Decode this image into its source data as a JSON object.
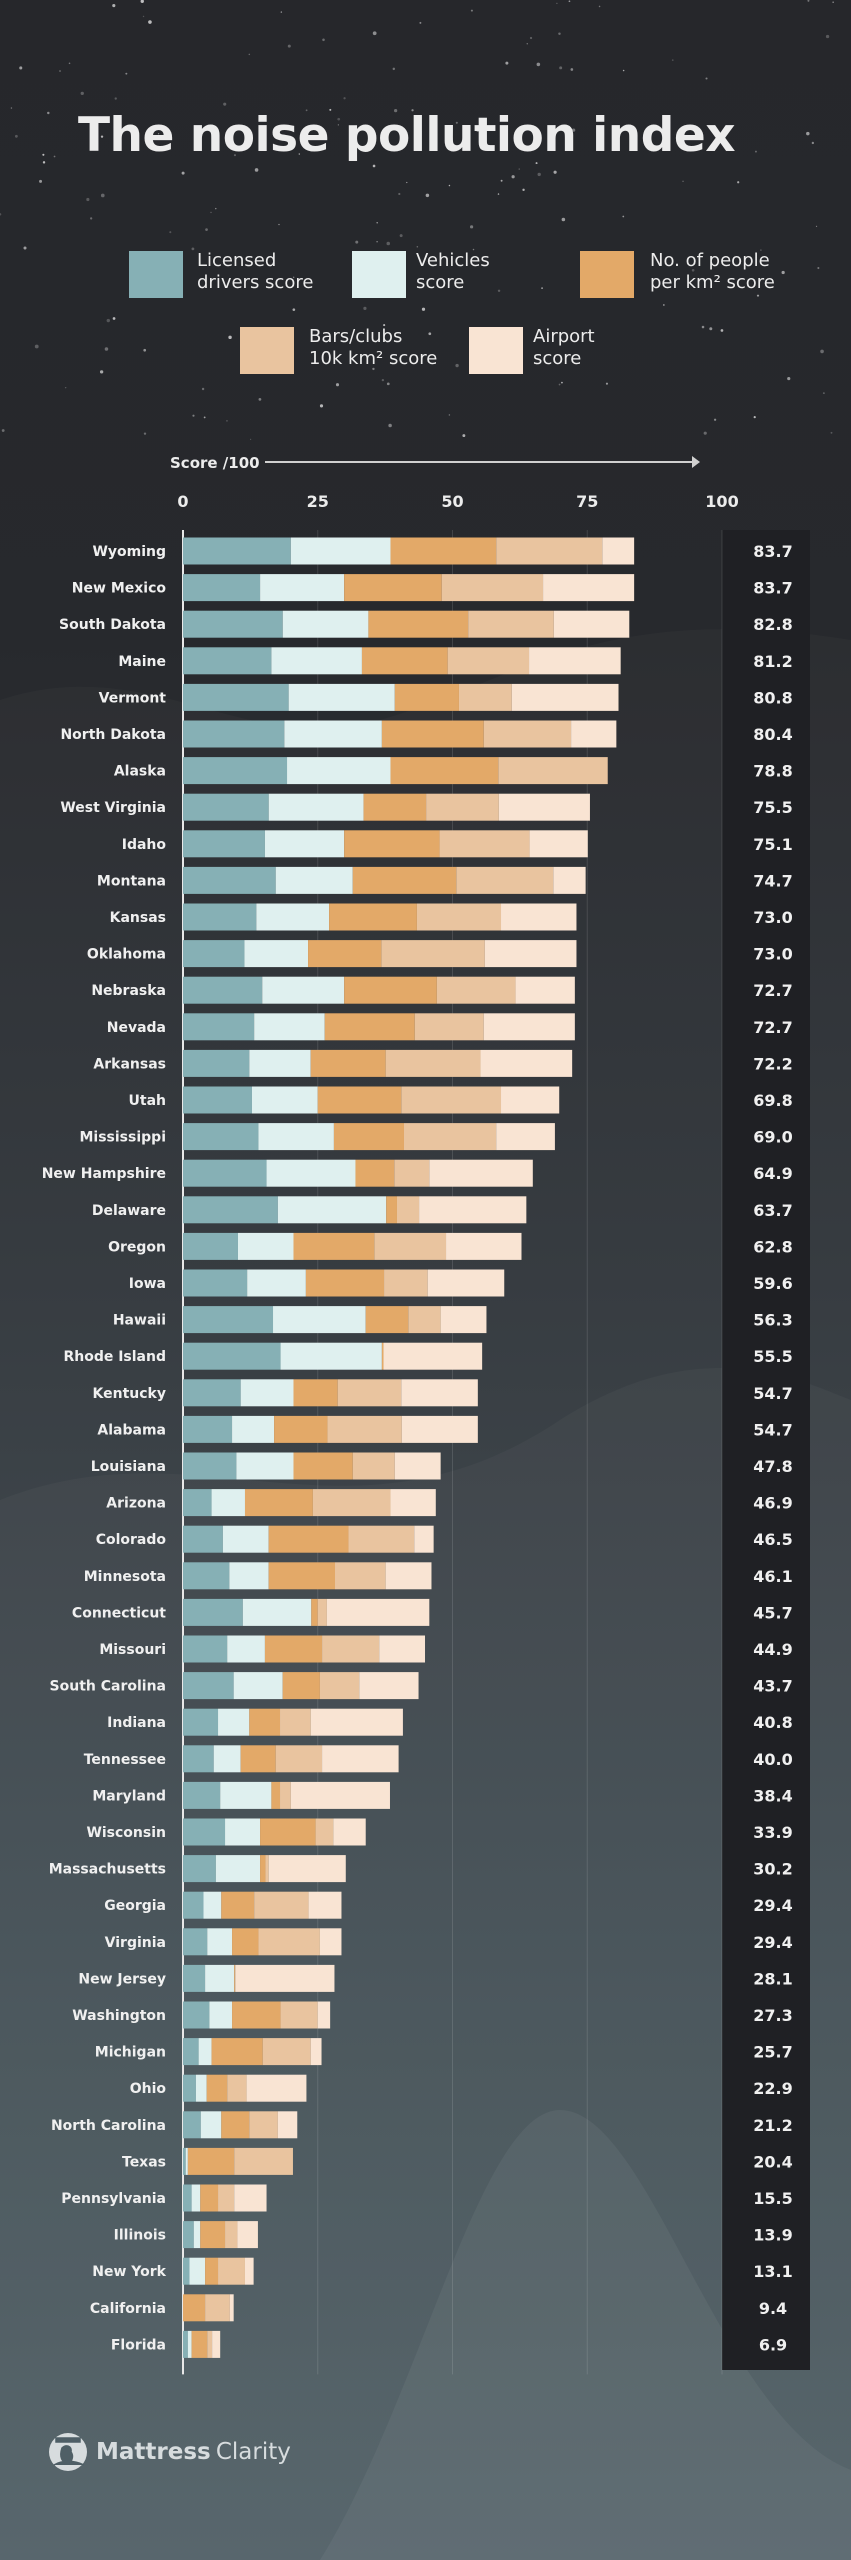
{
  "title": "The noise pollution index",
  "legend": [
    {
      "label": "Licensed\ndrivers score",
      "color": "#86b0b5"
    },
    {
      "label": "Vehicles\nscore",
      "color": "#dff0ef"
    },
    {
      "label": "No. of people\nper km² score",
      "color": "#e3a968"
    },
    {
      "label": "Bars/clubs\n10k km² score",
      "color": "#e9c49f"
    },
    {
      "label": "Airport\nscore",
      "color": "#f9e4d3"
    }
  ],
  "logo": {
    "brand_bold": "Mattress",
    "brand_light": "Clarity"
  },
  "chart_data": {
    "type": "bar",
    "orientation": "horizontal",
    "stacked": true,
    "title": "The noise pollution index",
    "xlabel": "Score /100",
    "xlim": [
      0,
      100
    ],
    "xticks": [
      "0",
      "25",
      "50",
      "75",
      "100"
    ],
    "grid": true,
    "legend_position": "top",
    "categories": [
      "Wyoming",
      "New Mexico",
      "South Dakota",
      "Maine",
      "Vermont",
      "North Dakota",
      "Alaska",
      "West Virginia",
      "Idaho",
      "Montana",
      "Kansas",
      "Oklahoma",
      "Nebraska",
      "Nevada",
      "Arkansas",
      "Utah",
      "Mississippi",
      "New Hampshire",
      "Delaware",
      "Oregon",
      "Iowa",
      "Hawaii",
      "Rhode Island",
      "Kentucky",
      "Alabama",
      "Louisiana",
      "Arizona",
      "Colorado",
      "Minnesota",
      "Connecticut",
      "Missouri",
      "South Carolina",
      "Indiana",
      "Tennessee",
      "Maryland",
      "Wisconsin",
      "Massachusetts",
      "Georgia",
      "Virginia",
      "New Jersey",
      "Washington",
      "Michigan",
      "Ohio",
      "North Carolina",
      "Texas",
      "Pennsylvania",
      "Illinois",
      "New York",
      "California",
      "Florida"
    ],
    "totals": [
      "83.7",
      "83.7",
      "82.8",
      "81.2",
      "80.8",
      "80.4",
      "78.8",
      "75.5",
      "75.1",
      "74.7",
      "73.0",
      "73.0",
      "72.7",
      "72.7",
      "72.2",
      "69.8",
      "69.0",
      "64.9",
      "63.7",
      "62.8",
      "59.6",
      "56.3",
      "55.5",
      "54.7",
      "54.7",
      "47.8",
      "46.9",
      "46.5",
      "46.1",
      "45.7",
      "44.9",
      "43.7",
      "40.8",
      "40.0",
      "38.4",
      "33.9",
      "30.2",
      "29.4",
      "29.4",
      "28.1",
      "27.3",
      "25.7",
      "22.9",
      "21.2",
      "20.4",
      "15.5",
      "13.9",
      "13.1",
      "9.4",
      "6.9"
    ],
    "series": [
      {
        "name": "Licensed drivers score",
        "color": "#86b0b5",
        "values": [
          20.0,
          14.3,
          18.5,
          16.4,
          19.6,
          18.8,
          19.3,
          15.9,
          15.2,
          17.2,
          13.6,
          11.4,
          14.7,
          13.2,
          12.3,
          12.8,
          14.0,
          15.5,
          17.6,
          10.2,
          11.9,
          16.7,
          18.1,
          10.7,
          9.1,
          9.9,
          5.3,
          7.4,
          8.6,
          11.1,
          8.2,
          9.4,
          6.5,
          5.7,
          6.9,
          7.8,
          6.1,
          3.8,
          4.5,
          4.1,
          4.9,
          2.9,
          2.4,
          3.3,
          0.5,
          1.6,
          2.0,
          1.2,
          0.0,
          0.9
        ]
      },
      {
        "name": "Vehicles score",
        "color": "#dff0ef",
        "values": [
          18.5,
          15.6,
          15.9,
          16.8,
          19.7,
          18.1,
          19.2,
          17.6,
          14.7,
          14.3,
          13.5,
          11.8,
          15.2,
          13.1,
          11.4,
          12.2,
          14.0,
          16.5,
          20.1,
          10.3,
          10.9,
          17.2,
          18.8,
          9.8,
          7.8,
          10.6,
          6.2,
          8.5,
          7.3,
          12.7,
          7.0,
          9.1,
          5.8,
          5.0,
          9.5,
          6.5,
          8.2,
          3.3,
          4.6,
          5.4,
          4.2,
          2.4,
          2.0,
          3.8,
          0.4,
          1.6,
          1.2,
          2.9,
          0.0,
          0.7
        ]
      },
      {
        "name": "No. of people per km² score",
        "color": "#e3a968",
        "values": [
          19.6,
          18.1,
          18.5,
          15.9,
          11.9,
          18.9,
          20.0,
          11.6,
          17.7,
          19.2,
          16.3,
          13.6,
          17.2,
          16.7,
          13.9,
          15.5,
          13.0,
          7.2,
          2.0,
          15.0,
          14.5,
          7.9,
          0.3,
          8.2,
          9.9,
          11.0,
          12.6,
          14.8,
          12.3,
          1.2,
          10.6,
          6.9,
          5.7,
          6.5,
          1.6,
          10.3,
          1.0,
          6.1,
          4.9,
          0.2,
          9.0,
          9.5,
          3.8,
          5.2,
          8.6,
          3.3,
          4.6,
          2.4,
          4.1,
          2.9
        ]
      },
      {
        "name": "Bars/clubs 10k km² score",
        "color": "#e9c49f",
        "values": [
          19.7,
          18.8,
          15.9,
          15.1,
          9.8,
          16.2,
          20.3,
          13.5,
          16.7,
          18.0,
          15.6,
          19.2,
          14.6,
          12.8,
          17.6,
          18.5,
          17.1,
          6.5,
          4.1,
          13.3,
          8.1,
          6.0,
          0.0,
          11.8,
          13.8,
          7.8,
          14.4,
          12.2,
          9.4,
          1.7,
          10.6,
          7.3,
          5.7,
          8.6,
          2.0,
          3.3,
          0.6,
          10.1,
          11.4,
          0.0,
          6.9,
          8.9,
          3.6,
          5.3,
          10.9,
          3.0,
          2.3,
          5.0,
          4.6,
          0.9
        ]
      },
      {
        "name": "Airport score",
        "color": "#f9e4d3",
        "values": [
          5.9,
          16.9,
          14.0,
          17.0,
          19.8,
          8.4,
          0.0,
          16.9,
          10.8,
          6.0,
          14.0,
          17.0,
          11.0,
          16.9,
          17.0,
          10.8,
          10.9,
          19.2,
          19.9,
          14.0,
          14.2,
          8.5,
          18.3,
          14.2,
          14.1,
          8.5,
          8.4,
          3.6,
          8.5,
          19.0,
          8.5,
          11.0,
          17.1,
          14.2,
          18.4,
          6.0,
          14.3,
          6.1,
          4.0,
          18.4,
          2.3,
          2.0,
          11.1,
          3.6,
          0.0,
          6.0,
          3.8,
          1.6,
          0.7,
          1.5
        ]
      }
    ]
  }
}
